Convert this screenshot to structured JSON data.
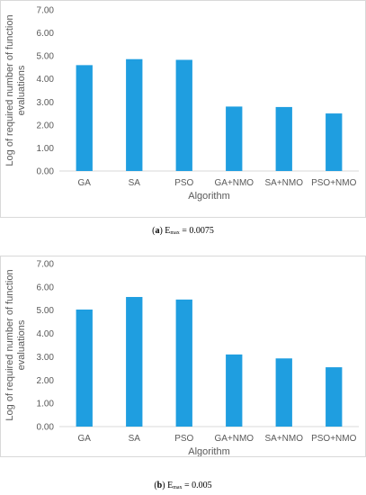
{
  "chart_data": [
    {
      "type": "bar",
      "categories": [
        "GA",
        "SA",
        "PSO",
        "GA+NMO",
        "SA+NMO",
        "PSO+NMO"
      ],
      "values": [
        4.6,
        4.86,
        4.83,
        2.8,
        2.78,
        2.5
      ],
      "xlabel": "Algorithm",
      "ylabel": "Log of required number of function evaluations",
      "ylim": [
        0,
        7
      ],
      "yticks": [
        "0.00",
        "1.00",
        "2.00",
        "3.00",
        "4.00",
        "5.00",
        "6.00",
        "7.00"
      ],
      "bar_color": "#1f9ee0",
      "grid": false
    },
    {
      "type": "bar",
      "categories": [
        "GA",
        "SA",
        "PSO",
        "GA+NMO",
        "SA+NMO",
        "PSO+NMO"
      ],
      "values": [
        5.03,
        5.57,
        5.46,
        3.1,
        2.93,
        2.55
      ],
      "xlabel": "Algorithm",
      "ylabel": "Log of required number of function evaluations",
      "ylim": [
        0,
        7
      ],
      "yticks": [
        "0.00",
        "1.00",
        "2.00",
        "3.00",
        "4.00",
        "5.00",
        "6.00",
        "7.00"
      ],
      "bar_color": "#1f9ee0",
      "grid": false
    }
  ],
  "captions": [
    {
      "letter": "a",
      "var": "E",
      "sub": "max",
      "rest": " = 0.0075"
    },
    {
      "letter": "b",
      "var": "E",
      "sub": "max",
      "rest": " = 0.005"
    }
  ]
}
